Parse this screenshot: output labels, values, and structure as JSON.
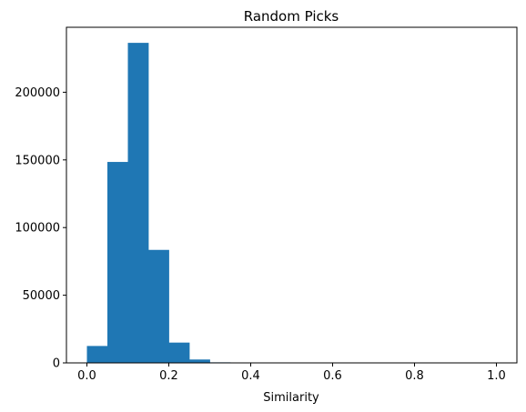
{
  "chart_data": {
    "type": "bar",
    "title": "Random Picks",
    "xlabel": "Similarity",
    "ylabel": "",
    "xlim": [
      -0.05,
      1.05
    ],
    "ylim": [
      0,
      248000
    ],
    "x_ticks": [
      0.0,
      0.2,
      0.4,
      0.6,
      0.8,
      1.0
    ],
    "x_tick_labels": [
      "0.0",
      "0.2",
      "0.4",
      "0.6",
      "0.8",
      "1.0"
    ],
    "y_ticks": [
      0,
      50000,
      100000,
      150000,
      200000
    ],
    "y_tick_labels": [
      "0",
      "50000",
      "100000",
      "150000",
      "200000"
    ],
    "bin_edges": [
      0.0,
      0.05,
      0.1,
      0.15,
      0.2,
      0.25,
      0.3,
      0.35,
      0.4,
      0.45,
      0.5,
      0.55,
      0.6,
      0.65,
      0.7,
      0.75,
      0.8,
      0.85,
      0.9,
      0.95,
      1.0
    ],
    "values": [
      12500,
      148500,
      236500,
      83500,
      15000,
      2500,
      400,
      80,
      20,
      5,
      0,
      0,
      0,
      0,
      0,
      0,
      0,
      0,
      0,
      0
    ],
    "bar_color": "#1f77b4",
    "grid": false,
    "legend": "none"
  }
}
